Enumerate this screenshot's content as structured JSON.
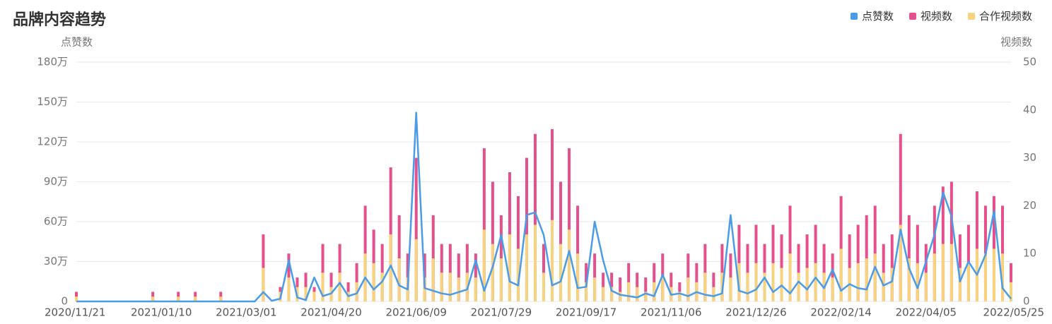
{
  "chart_data": {
    "type": "combo",
    "title": "品牌内容趋势",
    "y_label": "点赞数",
    "y2_label": "视频数",
    "categories": [
      "2020/11/21",
      null,
      null,
      null,
      null,
      null,
      null,
      null,
      null,
      null,
      "2021/01/10",
      null,
      null,
      null,
      null,
      null,
      null,
      null,
      null,
      null,
      "2021/03/01",
      null,
      null,
      null,
      null,
      null,
      null,
      null,
      null,
      null,
      "2021/04/20",
      null,
      null,
      null,
      null,
      null,
      null,
      null,
      null,
      null,
      "2021/06/09",
      null,
      null,
      null,
      null,
      null,
      null,
      null,
      null,
      null,
      "2021/07/29",
      null,
      null,
      null,
      null,
      null,
      null,
      null,
      null,
      null,
      "2021/09/17",
      null,
      null,
      null,
      null,
      null,
      null,
      null,
      null,
      null,
      "2021/11/06",
      null,
      null,
      null,
      null,
      null,
      null,
      null,
      null,
      null,
      "2021/12/26",
      null,
      null,
      null,
      null,
      null,
      null,
      null,
      null,
      null,
      "2022/02/14",
      null,
      null,
      null,
      null,
      null,
      null,
      null,
      null,
      null,
      "2022/04/05",
      null,
      null,
      null,
      null,
      null,
      null,
      null,
      null,
      null,
      "2022/05/25"
    ],
    "series": [
      {
        "name": "点赞数",
        "type": "line",
        "axis": "y",
        "color": "#4a9be8",
        "values": [
          0,
          0,
          0,
          0,
          0,
          0,
          0,
          0,
          0,
          0,
          0,
          0,
          0,
          0,
          0,
          0,
          0,
          0,
          0,
          0,
          0,
          0,
          70000,
          5000,
          20000,
          310000,
          30000,
          10000,
          180000,
          40000,
          60000,
          140000,
          40000,
          60000,
          180000,
          90000,
          150000,
          270000,
          120000,
          90000,
          1420000,
          100000,
          80000,
          60000,
          50000,
          70000,
          90000,
          310000,
          80000,
          260000,
          500000,
          150000,
          120000,
          650000,
          670000,
          500000,
          120000,
          150000,
          380000,
          100000,
          110000,
          600000,
          310000,
          80000,
          50000,
          40000,
          30000,
          60000,
          40000,
          200000,
          50000,
          60000,
          40000,
          70000,
          50000,
          40000,
          60000,
          650000,
          80000,
          60000,
          90000,
          180000,
          70000,
          120000,
          60000,
          150000,
          90000,
          180000,
          100000,
          240000,
          80000,
          130000,
          100000,
          90000,
          260000,
          120000,
          150000,
          540000,
          250000,
          100000,
          300000,
          500000,
          820000,
          640000,
          150000,
          300000,
          200000,
          350000,
          680000,
          100000,
          20000
        ]
      },
      {
        "name": "视频数",
        "type": "bar",
        "axis": "y2",
        "color": "#e5508c",
        "values": [
          2,
          0,
          0,
          0,
          0,
          0,
          0,
          0,
          0,
          2,
          0,
          0,
          2,
          0,
          2,
          0,
          0,
          2,
          0,
          0,
          0,
          0,
          14,
          0,
          3,
          10,
          5,
          6,
          3,
          12,
          6,
          12,
          4,
          8,
          20,
          15,
          12,
          28,
          18,
          10,
          30,
          10,
          18,
          12,
          12,
          10,
          12,
          10,
          32,
          25,
          18,
          27,
          22,
          30,
          35,
          12,
          36,
          25,
          32,
          20,
          8,
          10,
          6,
          6,
          5,
          8,
          6,
          5,
          8,
          10,
          6,
          4,
          10,
          8,
          12,
          6,
          12,
          10,
          16,
          12,
          16,
          12,
          16,
          14,
          20,
          12,
          14,
          16,
          12,
          10,
          22,
          14,
          16,
          18,
          20,
          12,
          14,
          35,
          18,
          16,
          12,
          20,
          24,
          25,
          14,
          16,
          23,
          20,
          22,
          20,
          8
        ]
      },
      {
        "name": "合作视频数",
        "type": "bar",
        "axis": "y2",
        "color": "#f7d37e",
        "values": [
          1,
          0,
          0,
          0,
          0,
          0,
          0,
          0,
          0,
          1,
          0,
          0,
          1,
          0,
          1,
          0,
          0,
          1,
          0,
          0,
          0,
          0,
          7,
          0,
          2,
          5,
          3,
          3,
          2,
          6,
          3,
          6,
          2,
          4,
          10,
          8,
          6,
          14,
          9,
          5,
          13,
          5,
          9,
          6,
          6,
          5,
          6,
          5,
          15,
          12,
          9,
          14,
          11,
          14,
          16,
          6,
          17,
          12,
          15,
          10,
          4,
          5,
          3,
          3,
          2,
          4,
          3,
          2,
          4,
          5,
          3,
          2,
          5,
          4,
          6,
          3,
          6,
          5,
          8,
          6,
          8,
          6,
          8,
          7,
          10,
          6,
          7,
          8,
          6,
          5,
          11,
          7,
          8,
          9,
          10,
          6,
          7,
          16,
          9,
          8,
          6,
          10,
          12,
          12,
          7,
          8,
          11,
          10,
          11,
          10,
          4
        ]
      }
    ],
    "ylim": [
      0,
      1800000
    ],
    "yticks": [
      0,
      {
        "value": 300000,
        "label": "30万"
      },
      {
        "value": 600000,
        "label": "60万"
      },
      {
        "value": 900000,
        "label": "90万"
      },
      {
        "value": 1200000,
        "label": "120万"
      },
      {
        "value": 1500000,
        "label": "150万"
      },
      {
        "value": 1800000,
        "label": "180万"
      }
    ],
    "y2lim": [
      0,
      50
    ],
    "y2ticks": [
      0,
      10,
      20,
      30,
      40,
      50
    ],
    "grid": true,
    "legend": "top-right"
  }
}
